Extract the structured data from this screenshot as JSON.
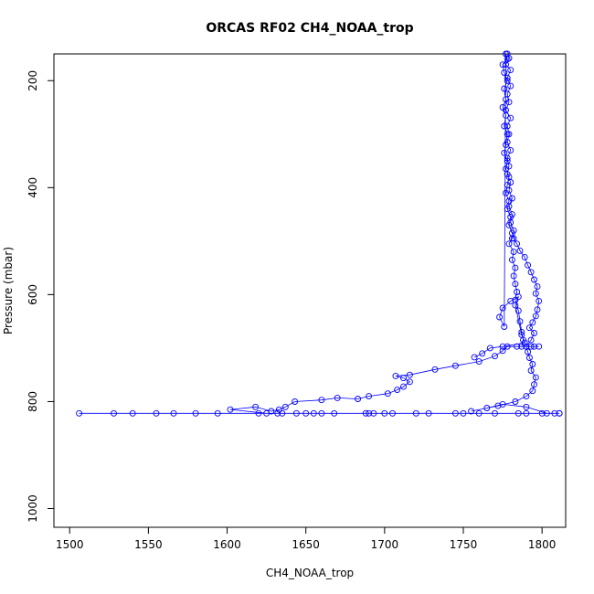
{
  "chart_data": {
    "type": "scatter",
    "title": "ORCAS RF02 CH4_NOAA_trop",
    "xlabel": "CH4_NOAA_trop",
    "ylabel": "Pressure (mbar)",
    "xlim": [
      1490,
      1815
    ],
    "ylim": [
      1035,
      150
    ],
    "y_reversed": true,
    "x_ticks": [
      1500,
      1550,
      1600,
      1650,
      1700,
      1750,
      1800
    ],
    "y_ticks": [
      200,
      400,
      600,
      800,
      1000
    ],
    "grid": false,
    "series": [
      {
        "style": "lines+points",
        "color": "#0000ff",
        "points": [
          [
            1778,
            150
          ],
          [
            1779,
            158
          ],
          [
            1777,
            170
          ],
          [
            1780,
            180
          ],
          [
            1778,
            195
          ],
          [
            1780,
            210
          ],
          [
            1778,
            225
          ],
          [
            1779,
            240
          ],
          [
            1777,
            255
          ],
          [
            1780,
            270
          ],
          [
            1778,
            285
          ],
          [
            1779,
            300
          ],
          [
            1778,
            315
          ],
          [
            1780,
            330
          ],
          [
            1778,
            345
          ],
          [
            1779,
            360
          ],
          [
            1778,
            375
          ],
          [
            1780,
            390
          ],
          [
            1779,
            405
          ],
          [
            1781,
            420
          ],
          [
            1779,
            435
          ],
          [
            1781,
            450
          ],
          [
            1780,
            465
          ],
          [
            1782,
            480
          ],
          [
            1781,
            495
          ],
          [
            1779,
            505
          ],
          [
            1782,
            520
          ],
          [
            1781,
            535
          ],
          [
            1783,
            550
          ],
          [
            1782,
            565
          ],
          [
            1783,
            580
          ],
          [
            1784,
            595
          ],
          [
            1783,
            610
          ],
          [
            1785,
            630
          ],
          [
            1786,
            650
          ],
          [
            1787,
            670
          ],
          [
            1788,
            685
          ],
          [
            1787,
            697
          ],
          [
            1790,
            697
          ],
          [
            1795,
            697
          ],
          [
            1798,
            697
          ],
          [
            1793,
            697
          ],
          [
            1784,
            697
          ],
          [
            1778,
            697
          ],
          [
            1775,
            705
          ],
          [
            1770,
            715
          ],
          [
            1760,
            725
          ],
          [
            1745,
            733
          ],
          [
            1732,
            740
          ],
          [
            1716,
            750
          ],
          [
            1707,
            752
          ],
          [
            1712,
            756
          ],
          [
            1716,
            763
          ],
          [
            1712,
            772
          ],
          [
            1708,
            778
          ],
          [
            1702,
            785
          ],
          [
            1690,
            790
          ],
          [
            1683,
            795
          ],
          [
            1670,
            793
          ],
          [
            1660,
            797
          ],
          [
            1643,
            800
          ],
          [
            1637,
            810
          ],
          [
            1633,
            815
          ],
          [
            1628,
            818
          ],
          [
            1618,
            810
          ],
          [
            1602,
            815
          ],
          [
            1625,
            822
          ],
          [
            1635,
            822
          ],
          [
            1660,
            822
          ],
          [
            1700,
            822
          ],
          [
            1750,
            822
          ],
          [
            1800,
            822
          ],
          [
            1811,
            822
          ],
          [
            1790,
            822
          ],
          [
            1770,
            822
          ],
          [
            1745,
            822
          ],
          [
            1728,
            822
          ],
          [
            1705,
            822
          ],
          [
            1693,
            822
          ],
          [
            1688,
            822
          ],
          [
            1668,
            822
          ],
          [
            1650,
            822
          ],
          [
            1644,
            822
          ],
          [
            1632,
            822
          ],
          [
            1594,
            822
          ],
          [
            1566,
            822
          ],
          [
            1555,
            822
          ],
          [
            1528,
            822
          ],
          [
            1506,
            822
          ],
          [
            1540,
            822
          ],
          [
            1580,
            822
          ],
          [
            1620,
            822
          ],
          [
            1655,
            822
          ],
          [
            1690,
            822
          ],
          [
            1720,
            822
          ],
          [
            1760,
            822
          ],
          [
            1785,
            822
          ],
          [
            1808,
            822
          ],
          [
            1811,
            822
          ],
          [
            1803,
            822
          ],
          [
            1790,
            810
          ],
          [
            1775,
            805
          ],
          [
            1765,
            812
          ],
          [
            1755,
            818
          ],
          [
            1772,
            808
          ],
          [
            1783,
            800
          ],
          [
            1790,
            790
          ],
          [
            1794,
            780
          ],
          [
            1795,
            768
          ],
          [
            1796,
            755
          ],
          [
            1793,
            742
          ],
          [
            1794,
            730
          ],
          [
            1792,
            718
          ],
          [
            1791,
            707
          ],
          [
            1790,
            697
          ],
          [
            1793,
            685
          ],
          [
            1795,
            672
          ],
          [
            1792,
            662
          ],
          [
            1794,
            652
          ],
          [
            1796,
            640
          ],
          [
            1797,
            628
          ],
          [
            1798,
            612
          ],
          [
            1796,
            598
          ],
          [
            1797,
            585
          ],
          [
            1795,
            572
          ],
          [
            1793,
            558
          ],
          [
            1791,
            545
          ],
          [
            1789,
            530
          ],
          [
            1786,
            518
          ],
          [
            1784,
            505
          ],
          [
            1782,
            495
          ],
          [
            1781,
            485
          ],
          [
            1779,
            470
          ],
          [
            1780,
            455
          ],
          [
            1778,
            440
          ],
          [
            1779,
            425
          ],
          [
            1777,
            410
          ],
          [
            1778,
            395
          ],
          [
            1779,
            380
          ],
          [
            1777,
            365
          ],
          [
            1778,
            350
          ],
          [
            1776,
            335
          ],
          [
            1777,
            320
          ],
          [
            1778,
            300
          ],
          [
            1776,
            285
          ],
          [
            1777,
            265
          ],
          [
            1775,
            250
          ],
          [
            1777,
            235
          ],
          [
            1776,
            215
          ],
          [
            1778,
            200
          ],
          [
            1776,
            185
          ],
          [
            1775,
            170
          ],
          [
            1778,
            160
          ],
          [
            1777,
            150
          ],
          [
            1776,
            660
          ],
          [
            1773,
            642
          ],
          [
            1775,
            625
          ],
          [
            1780,
            612
          ],
          [
            1785,
            604
          ],
          [
            1783,
            620
          ],
          [
            1787,
            675
          ],
          [
            1789,
            690
          ],
          [
            1775,
            697
          ],
          [
            1767,
            700
          ],
          [
            1762,
            710
          ],
          [
            1757,
            717
          ]
        ]
      }
    ]
  }
}
